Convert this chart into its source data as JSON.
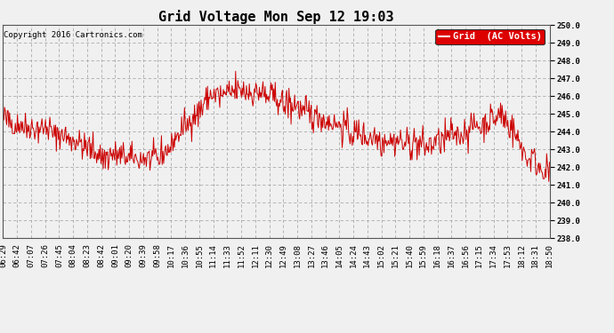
{
  "title": "Grid Voltage Mon Sep 12 19:03",
  "copyright": "Copyright 2016 Cartronics.com",
  "legend_label": "Grid  (AC Volts)",
  "legend_bg": "#dd0000",
  "legend_fg": "#ffffff",
  "line_color": "#cc0000",
  "bg_color": "#f0f0f0",
  "plot_bg": "#f0f0f0",
  "grid_color": "#aaaaaa",
  "ylim": [
    238.0,
    250.0
  ],
  "yticks": [
    238.0,
    239.0,
    240.0,
    241.0,
    242.0,
    243.0,
    244.0,
    245.0,
    246.0,
    247.0,
    248.0,
    249.0,
    250.0
  ],
  "xtick_labels": [
    "06:29",
    "06:42",
    "07:07",
    "07:26",
    "07:45",
    "08:04",
    "08:23",
    "08:42",
    "09:01",
    "09:20",
    "09:39",
    "09:58",
    "10:17",
    "10:36",
    "10:55",
    "11:14",
    "11:33",
    "11:52",
    "12:11",
    "12:30",
    "12:49",
    "13:08",
    "13:27",
    "13:46",
    "14:05",
    "14:24",
    "14:43",
    "15:02",
    "15:21",
    "15:40",
    "15:59",
    "16:18",
    "16:37",
    "16:56",
    "17:15",
    "17:34",
    "17:53",
    "18:12",
    "18:31",
    "18:50"
  ],
  "title_fontsize": 11,
  "copyright_fontsize": 6.5,
  "tick_fontsize": 6.5,
  "legend_fontsize": 7.5
}
